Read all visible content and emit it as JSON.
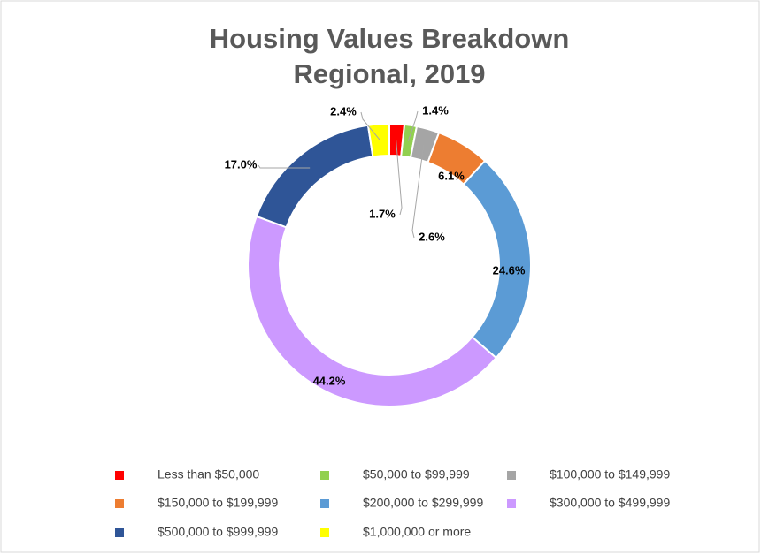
{
  "chart_data": {
    "type": "donut",
    "title": "Housing Values Breakdown",
    "subtitle": "Regional, 2019",
    "categories": [
      "Less than $50,000",
      "$50,000 to $99,999",
      "$100,000 to $149,999",
      "$150,000 to $199,999",
      "$200,000 to $299,999",
      "$300,000 to $499,999",
      "$500,000 to $999,999",
      "$1,000,000 or more"
    ],
    "values": [
      1.7,
      1.4,
      2.6,
      6.1,
      24.6,
      44.2,
      17.0,
      2.4
    ],
    "value_labels": [
      "1.7%",
      "1.4%",
      "2.6%",
      "6.1%",
      "24.6%",
      "44.2%",
      "17.0%",
      "2.4%"
    ],
    "colors": [
      "#ff0000",
      "#92d050",
      "#a5a5a5",
      "#ed7d31",
      "#5b9bd5",
      "#cc99ff",
      "#2f5597",
      "#ffff00"
    ],
    "legend": "bottom"
  }
}
